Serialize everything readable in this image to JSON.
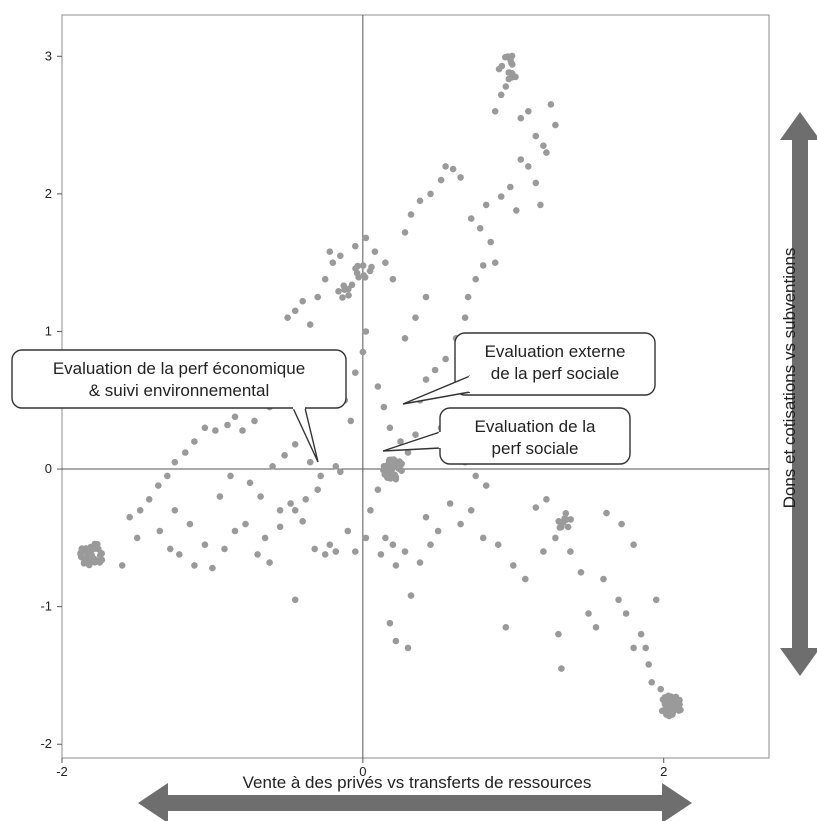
{
  "chart_data": {
    "type": "scatter",
    "xlim": [
      -2.0,
      2.7
    ],
    "ylim": [
      -2.1,
      3.3
    ],
    "x_ticks": [
      -2,
      0,
      2
    ],
    "y_ticks": [
      -2,
      -1,
      0,
      1,
      2,
      3
    ],
    "xlabel": "Vente à des privés vs transferts de ressources",
    "ylabel": "Dons et cotisations  vs  subventions",
    "grid": false,
    "point_color": "#9a9a9a",
    "axis_arrow_color": "#6e6e6e",
    "clusters": [
      {
        "x": -1.8,
        "y": -0.62,
        "count": 45,
        "spread": 0.08
      },
      {
        "x": 0.2,
        "y": 0.0,
        "count": 35,
        "spread": 0.07
      },
      {
        "x": 2.05,
        "y": -1.72,
        "count": 40,
        "spread": 0.07
      },
      {
        "x": 0.98,
        "y": 2.92,
        "count": 14,
        "spread": 0.08
      },
      {
        "x": 1.35,
        "y": -0.38,
        "count": 9,
        "spread": 0.06
      },
      {
        "x": 0.0,
        "y": 1.45,
        "count": 9,
        "spread": 0.06
      },
      {
        "x": -0.12,
        "y": 1.3,
        "count": 7,
        "spread": 0.06
      }
    ],
    "points": [
      [
        -1.55,
        -0.35
      ],
      [
        -1.48,
        -0.3
      ],
      [
        -1.42,
        -0.22
      ],
      [
        -1.36,
        -0.12
      ],
      [
        -1.3,
        -0.05
      ],
      [
        -1.25,
        0.05
      ],
      [
        -1.18,
        0.12
      ],
      [
        -1.12,
        0.2
      ],
      [
        -1.05,
        0.3
      ],
      [
        -0.98,
        0.28
      ],
      [
        -0.9,
        0.32
      ],
      [
        -0.85,
        0.38
      ],
      [
        -0.8,
        0.28
      ],
      [
        -0.72,
        0.35
      ],
      [
        -0.62,
        0.45
      ],
      [
        -0.55,
        0.55
      ],
      [
        -0.5,
        1.1
      ],
      [
        -0.45,
        1.15
      ],
      [
        -0.4,
        1.22
      ],
      [
        -0.35,
        1.05
      ],
      [
        -0.3,
        1.25
      ],
      [
        -0.25,
        1.38
      ],
      [
        -0.2,
        1.5
      ],
      [
        -0.22,
        1.58
      ],
      [
        -0.15,
        1.55
      ],
      [
        -0.05,
        1.62
      ],
      [
        0.02,
        1.68
      ],
      [
        0.08,
        1.58
      ],
      [
        0.15,
        1.5
      ],
      [
        0.2,
        1.38
      ],
      [
        0.28,
        1.72
      ],
      [
        0.32,
        1.85
      ],
      [
        0.38,
        1.95
      ],
      [
        0.45,
        2.0
      ],
      [
        0.52,
        2.1
      ],
      [
        0.55,
        2.2
      ],
      [
        0.6,
        2.18
      ],
      [
        0.65,
        2.12
      ],
      [
        0.72,
        1.82
      ],
      [
        0.78,
        1.75
      ],
      [
        0.82,
        1.92
      ],
      [
        0.85,
        1.65
      ],
      [
        0.88,
        1.5
      ],
      [
        0.92,
        1.98
      ],
      [
        0.98,
        2.05
      ],
      [
        1.02,
        1.88
      ],
      [
        1.05,
        2.25
      ],
      [
        1.1,
        2.2
      ],
      [
        1.15,
        2.08
      ],
      [
        1.18,
        1.92
      ],
      [
        0.88,
        2.6
      ],
      [
        0.92,
        2.72
      ],
      [
        0.95,
        2.78
      ],
      [
        1.05,
        2.55
      ],
      [
        1.1,
        2.6
      ],
      [
        1.15,
        2.42
      ],
      [
        1.2,
        2.35
      ],
      [
        1.22,
        2.3
      ],
      [
        1.25,
        2.65
      ],
      [
        1.28,
        2.5
      ],
      [
        -0.65,
        -0.5
      ],
      [
        -0.55,
        -0.42
      ],
      [
        -0.45,
        -0.3
      ],
      [
        -0.38,
        -0.22
      ],
      [
        -0.3,
        -0.15
      ],
      [
        -0.22,
        -0.55
      ],
      [
        -0.18,
        -0.6
      ],
      [
        -0.1,
        -0.45
      ],
      [
        0.05,
        -0.3
      ],
      [
        0.1,
        -0.15
      ],
      [
        0.15,
        -0.5
      ],
      [
        0.2,
        -0.55
      ],
      [
        0.22,
        -0.7
      ],
      [
        0.28,
        -0.6
      ],
      [
        0.32,
        -0.92
      ],
      [
        0.18,
        -1.12
      ],
      [
        0.22,
        -1.25
      ],
      [
        0.3,
        -1.3
      ],
      [
        -0.45,
        -0.95
      ],
      [
        0.42,
        -0.35
      ],
      [
        0.5,
        -0.45
      ],
      [
        0.58,
        -0.25
      ],
      [
        0.65,
        -0.4
      ],
      [
        0.72,
        -0.3
      ],
      [
        0.8,
        -0.5
      ],
      [
        0.9,
        -0.55
      ],
      [
        1.0,
        -0.7
      ],
      [
        1.08,
        -0.8
      ],
      [
        1.15,
        -0.28
      ],
      [
        1.22,
        -0.22
      ],
      [
        1.28,
        -0.5
      ],
      [
        1.38,
        -0.6
      ],
      [
        1.45,
        -0.75
      ],
      [
        1.5,
        -1.05
      ],
      [
        1.55,
        -1.15
      ],
      [
        1.3,
        -1.2
      ],
      [
        1.32,
        -1.45
      ],
      [
        1.62,
        -0.32
      ],
      [
        1.72,
        -0.4
      ],
      [
        1.8,
        -0.55
      ],
      [
        1.85,
        -1.2
      ],
      [
        1.88,
        -1.3
      ],
      [
        1.9,
        -1.42
      ],
      [
        1.95,
        -0.95
      ],
      [
        0.95,
        -1.15
      ],
      [
        1.2,
        -0.6
      ],
      [
        -1.6,
        -0.7
      ],
      [
        -1.5,
        -0.5
      ],
      [
        -1.35,
        -0.45
      ],
      [
        -1.25,
        -0.3
      ],
      [
        -1.15,
        -0.4
      ],
      [
        -1.05,
        -0.55
      ],
      [
        -0.95,
        -0.2
      ],
      [
        -0.88,
        -0.05
      ],
      [
        -0.75,
        -0.1
      ],
      [
        -0.68,
        -0.2
      ],
      [
        -0.6,
        0.02
      ],
      [
        -0.52,
        0.1
      ],
      [
        -0.45,
        0.18
      ],
      [
        -0.35,
        0.05
      ],
      [
        -0.28,
        -0.05
      ],
      [
        -0.18,
        0.02
      ],
      [
        -0.15,
        -0.02
      ],
      [
        -0.08,
        0.35
      ],
      [
        -0.12,
        0.5
      ],
      [
        -0.05,
        0.7
      ],
      [
        0.0,
        0.85
      ],
      [
        0.02,
        1.0
      ],
      [
        0.1,
        0.6
      ],
      [
        0.14,
        0.45
      ],
      [
        0.18,
        0.3
      ],
      [
        0.25,
        0.2
      ],
      [
        0.3,
        0.12
      ],
      [
        0.35,
        0.25
      ],
      [
        0.38,
        0.5
      ],
      [
        0.42,
        0.65
      ],
      [
        0.48,
        0.72
      ],
      [
        0.52,
        0.3
      ],
      [
        0.6,
        0.15
      ],
      [
        0.68,
        0.05
      ],
      [
        0.75,
        -0.05
      ],
      [
        0.82,
        -0.12
      ],
      [
        0.55,
        0.8
      ],
      [
        0.62,
        0.95
      ],
      [
        0.68,
        1.1
      ],
      [
        0.7,
        1.25
      ],
      [
        0.75,
        1.38
      ],
      [
        0.8,
        1.48
      ],
      [
        0.42,
        1.25
      ],
      [
        0.35,
        1.1
      ],
      [
        0.28,
        0.95
      ],
      [
        -1.28,
        -0.58
      ],
      [
        -1.22,
        -0.62
      ],
      [
        -1.12,
        -0.7
      ],
      [
        -1.0,
        -0.72
      ],
      [
        -0.92,
        -0.58
      ],
      [
        -0.85,
        -0.45
      ],
      [
        -0.78,
        -0.4
      ],
      [
        -0.7,
        -0.62
      ],
      [
        -0.62,
        -0.68
      ],
      [
        -0.55,
        -0.3
      ],
      [
        -0.48,
        -0.25
      ],
      [
        -0.4,
        -0.38
      ],
      [
        -0.32,
        -0.58
      ],
      [
        -0.25,
        -0.62
      ],
      [
        -0.05,
        -0.6
      ],
      [
        0.02,
        -0.5
      ],
      [
        0.12,
        -0.62
      ],
      [
        0.38,
        -0.68
      ],
      [
        0.45,
        -0.55
      ],
      [
        1.6,
        -0.8
      ],
      [
        1.7,
        -0.95
      ],
      [
        1.75,
        -1.05
      ],
      [
        1.8,
        -1.3
      ],
      [
        1.92,
        -1.55
      ],
      [
        1.98,
        -1.6
      ]
    ],
    "annotations": [
      {
        "text_lines": [
          "Evaluation de la perf économique",
          "& suivi environnemental"
        ],
        "x": -0.42,
        "y": 0.08
      },
      {
        "text_lines": [
          "Evaluation externe",
          "de la perf sociale"
        ],
        "x": 0.16,
        "y": 0.47
      },
      {
        "text_lines": [
          "Evaluation de la",
          "perf sociale"
        ],
        "x": 0.02,
        "y": 0.13
      }
    ]
  }
}
